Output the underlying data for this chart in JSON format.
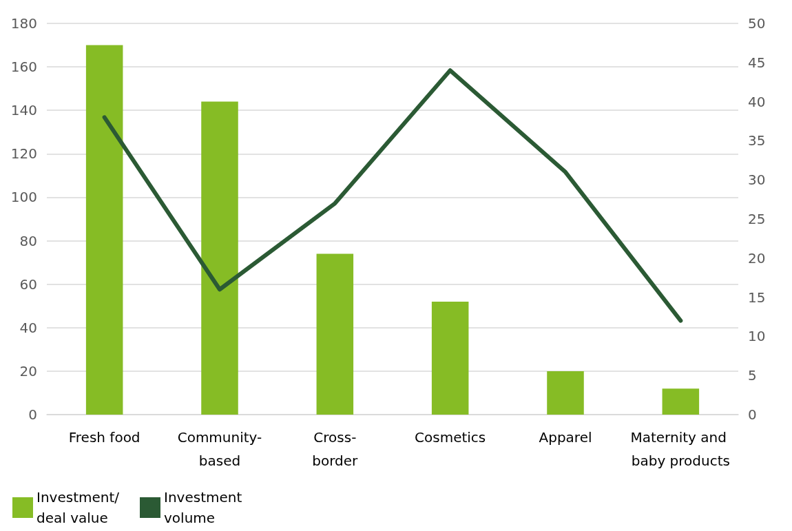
{
  "chart_data": {
    "type": "bar",
    "categories": [
      "Fresh food",
      "Community-based",
      "Cross-border",
      "Cosmetics",
      "Apparel",
      "Maternity and baby products"
    ],
    "series": [
      {
        "name": "Investment/deal value",
        "color": "#86bc25",
        "values": [
          170,
          144,
          74,
          52,
          20,
          12
        ]
      },
      {
        "name": "Investment volume",
        "type": "line",
        "axis": "y2",
        "color": "#2b5a34",
        "values": [
          38,
          16,
          27,
          44,
          31,
          12
        ]
      }
    ],
    "ylim": [
      0,
      180
    ],
    "yticks": [
      0,
      20,
      40,
      60,
      80,
      100,
      120,
      140,
      160,
      180
    ],
    "y2lim": [
      0,
      50
    ],
    "y2ticks": [
      0,
      5,
      10,
      15,
      20,
      25,
      30,
      35,
      40,
      45,
      50
    ],
    "grid": "y",
    "legend": "bottom left",
    "marker": "none",
    "line_style": "solid"
  }
}
